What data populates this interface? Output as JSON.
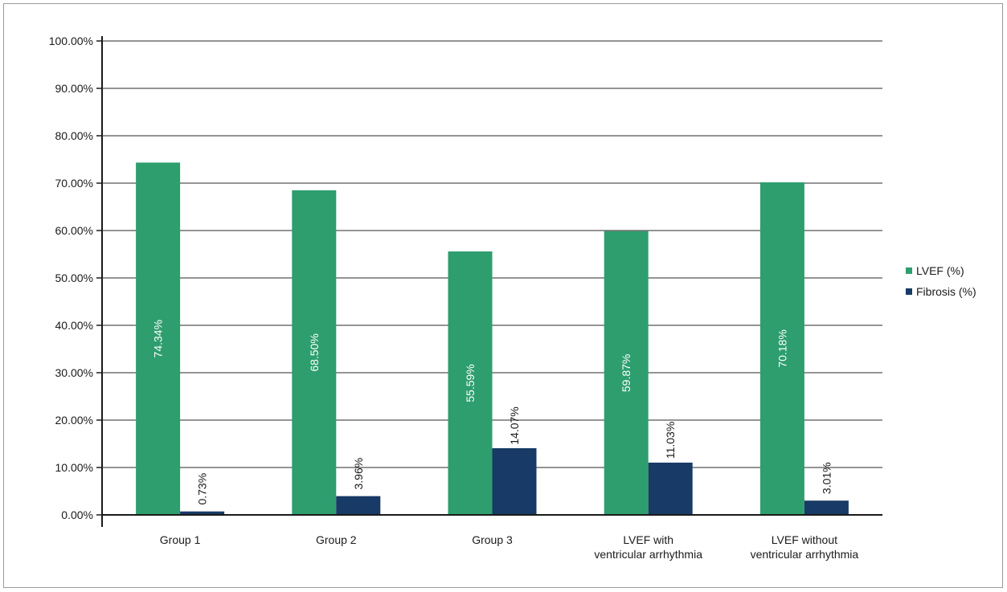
{
  "chart_data": {
    "type": "bar",
    "categories": [
      [
        "Group 1"
      ],
      [
        "Group 2"
      ],
      [
        "Group 3"
      ],
      [
        "LVEF with",
        "ventricular arrhythmia"
      ],
      [
        "LVEF without",
        "ventricular arrhythmia"
      ]
    ],
    "series": [
      {
        "name": "LVEF (%)",
        "color": "#2e9e6e",
        "values": [
          74.34,
          68.5,
          55.59,
          59.87,
          70.18
        ],
        "labels": [
          "74.34%",
          "68.50%",
          "55.59%",
          "59.87%",
          "70.18%"
        ]
      },
      {
        "name": "Fibrosis (%)",
        "color": "#173a66",
        "values": [
          0.73,
          3.96,
          14.07,
          11.03,
          3.01
        ],
        "labels": [
          "0.73%",
          "3.96%",
          "14.07%",
          "11.03%",
          "3.01%"
        ]
      }
    ],
    "yticks": [
      "0.00%",
      "10.00%",
      "20.00%",
      "30.00%",
      "40.00%",
      "50.00%",
      "60.00%",
      "70.00%",
      "80.00%",
      "90.00%",
      "100.00%"
    ],
    "ylim": [
      0,
      100
    ],
    "grid": true,
    "legend_position": "right"
  }
}
